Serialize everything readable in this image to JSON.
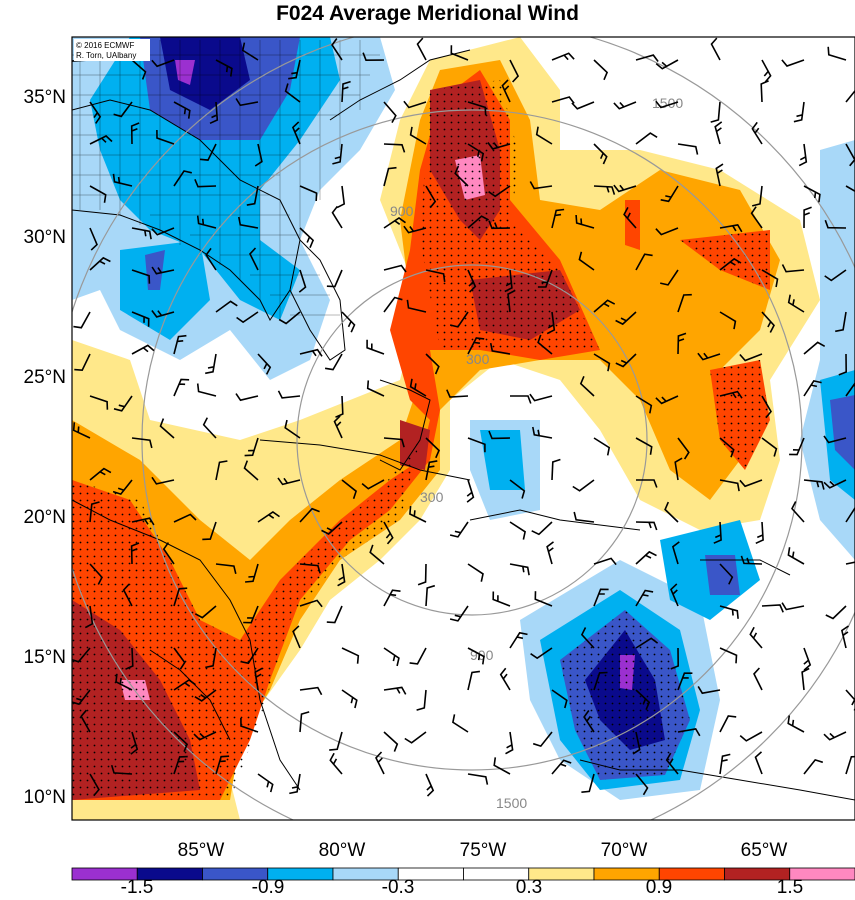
{
  "title": "F024 Average Meridional Wind",
  "credit": {
    "line1": "© 2016 ECMWF",
    "line2": "R. Torn, UAlbany"
  },
  "axes": {
    "lat_labels": [
      "35°N",
      "30°N",
      "25°N",
      "20°N",
      "15°N",
      "10°N"
    ],
    "lon_labels": [
      "85°W",
      "80°W",
      "75°W",
      "70°W",
      "65°W"
    ]
  },
  "range_rings": {
    "labels": [
      "300",
      "900",
      "1500"
    ],
    "color": "#999999"
  },
  "colorbar": {
    "colors": [
      "#9b30d0",
      "#0a0a8c",
      "#3a56c8",
      "#00b0f0",
      "#a8d8f8",
      "#ffffff",
      "#ffffff",
      "#ffe88a",
      "#ffa500",
      "#ff4500",
      "#b22222",
      "#ff88c0"
    ],
    "tick_labels": [
      "-1.5",
      "-0.9",
      "-0.3",
      "0.3",
      "0.9",
      "1.5"
    ]
  },
  "palette": {
    "strong_neg": "#0a0a8c",
    "mod_neg": "#3a56c8",
    "weak_neg": "#00b0f0",
    "faint_neg": "#a8d8f8",
    "faint_pos": "#ffe88a",
    "weak_pos": "#ffa500",
    "mod_pos": "#ff4500",
    "strong_pos": "#b22222",
    "extreme_pos": "#ff88c0",
    "extreme_neg": "#9b30d0"
  }
}
